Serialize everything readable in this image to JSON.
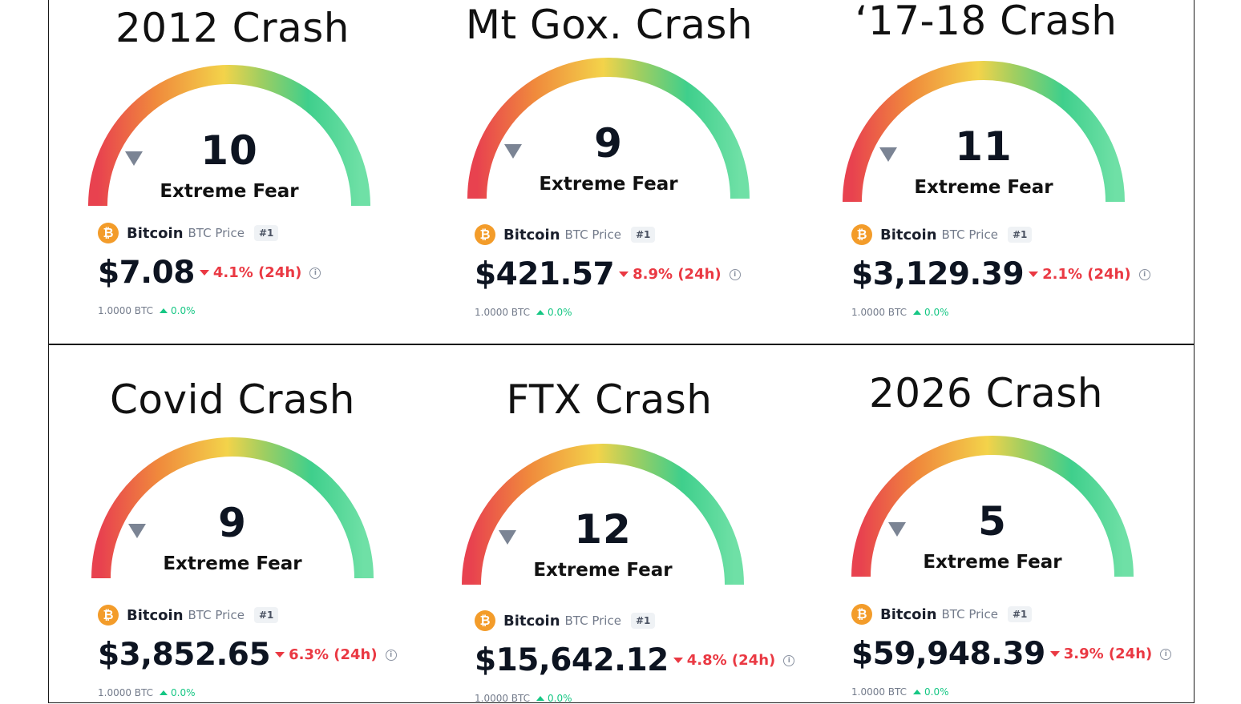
{
  "gauge_colors": [
    "#e8424f",
    "#f08a3c",
    "#f3d34a",
    "#9fce61",
    "#3fcf8c",
    "#6fe0a6"
  ],
  "panels": [
    {
      "title": "2012 Crash",
      "index_value": "10",
      "label": "Extreme Fear",
      "coin": {
        "icon": "btc-icon",
        "name": "Bitcoin",
        "symbol": "BTC Price",
        "rank": "#1"
      },
      "price": "$7.08",
      "change": "4.1% (24h)",
      "btc_amount": "1.0000 BTC",
      "btc_change": "0.0%"
    },
    {
      "title": "Mt Gox. Crash",
      "index_value": "9",
      "label": "Extreme Fear",
      "coin": {
        "icon": "btc-icon",
        "name": "Bitcoin",
        "symbol": "BTC Price",
        "rank": "#1"
      },
      "price": "$421.57",
      "change": "8.9% (24h)",
      "btc_amount": "1.0000 BTC",
      "btc_change": "0.0%"
    },
    {
      "title": "‘17-18 Crash",
      "index_value": "11",
      "label": "Extreme Fear",
      "coin": {
        "icon": "btc-icon",
        "name": "Bitcoin",
        "symbol": "BTC Price",
        "rank": "#1"
      },
      "price": "$3,129.39",
      "change": "2.1% (24h)",
      "btc_amount": "1.0000 BTC",
      "btc_change": "0.0%"
    },
    {
      "title": "Covid Crash",
      "index_value": "9",
      "label": "Extreme Fear",
      "coin": {
        "icon": "btc-icon",
        "name": "Bitcoin",
        "symbol": "BTC Price",
        "rank": "#1"
      },
      "price": "$3,852.65",
      "change": "6.3% (24h)",
      "btc_amount": "1.0000 BTC",
      "btc_change": "0.0%"
    },
    {
      "title": "FTX Crash",
      "index_value": "12",
      "label": "Extreme Fear",
      "coin": {
        "icon": "btc-icon",
        "name": "Bitcoin",
        "symbol": "BTC Price",
        "rank": "#1"
      },
      "price": "$15,642.12",
      "change": "4.8% (24h)",
      "btc_amount": "1.0000 BTC",
      "btc_change": "0.0%"
    },
    {
      "title": "2026 Crash",
      "index_value": "5",
      "label": "Extreme Fear",
      "coin": {
        "icon": "btc-icon",
        "name": "Bitcoin",
        "symbol": "BTC Price",
        "rank": "#1"
      },
      "price": "$59,948.39",
      "change": "3.9% (24h)",
      "btc_amount": "1.0000 BTC",
      "btc_change": "0.0%"
    }
  ]
}
